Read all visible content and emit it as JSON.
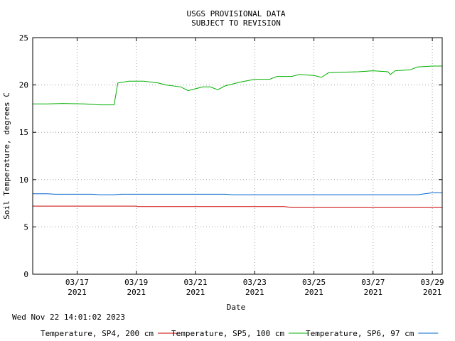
{
  "chart_data": {
    "type": "line",
    "title": [
      "USGS PROVISIONAL DATA",
      "SUBJECT TO REVISION"
    ],
    "xlabel": "Date",
    "ylabel": "Soil Temperature, degrees C",
    "ylim": [
      0,
      25
    ],
    "yticks": [
      0,
      5,
      10,
      15,
      20,
      25
    ],
    "xlim": [
      "2021-03-15T12:00",
      "2021-03-29T08:00"
    ],
    "xticks": [
      {
        "date": "2021-03-17",
        "label": [
          "03/17",
          "2021"
        ]
      },
      {
        "date": "2021-03-19",
        "label": [
          "03/19",
          "2021"
        ]
      },
      {
        "date": "2021-03-21",
        "label": [
          "03/21",
          "2021"
        ]
      },
      {
        "date": "2021-03-23",
        "label": [
          "03/23",
          "2021"
        ]
      },
      {
        "date": "2021-03-25",
        "label": [
          "03/25",
          "2021"
        ]
      },
      {
        "date": "2021-03-27",
        "label": [
          "03/27",
          "2021"
        ]
      },
      {
        "date": "2021-03-29",
        "label": [
          "03/29",
          "2021"
        ]
      }
    ],
    "grid": true,
    "legend_position": "bottom",
    "timestamp": "Wed Nov 22 14:01:02 2023",
    "series": [
      {
        "name": "Temperature, SP4, 200 cm",
        "color": "#cc0000",
        "points": [
          [
            "2021-03-15T12:00",
            7.2
          ],
          [
            "2021-03-19T00:00",
            7.2
          ],
          [
            "2021-03-19T01:00",
            7.15
          ],
          [
            "2021-03-24T00:00",
            7.15
          ],
          [
            "2021-03-24T06:00",
            7.05
          ],
          [
            "2021-03-29T08:00",
            7.05
          ]
        ]
      },
      {
        "name": "Temperature, SP5, 100 cm",
        "color": "#00b000",
        "points": [
          [
            "2021-03-15T12:00",
            18.0
          ],
          [
            "2021-03-16T00:00",
            18.0
          ],
          [
            "2021-03-16T12:00",
            18.05
          ],
          [
            "2021-03-17T06:00",
            18.0
          ],
          [
            "2021-03-17T18:00",
            17.9
          ],
          [
            "2021-03-18T06:00",
            17.9
          ],
          [
            "2021-03-18T09:00",
            20.2
          ],
          [
            "2021-03-18T18:00",
            20.4
          ],
          [
            "2021-03-19T06:00",
            20.4
          ],
          [
            "2021-03-19T18:00",
            20.2
          ],
          [
            "2021-03-20T00:00",
            20.0
          ],
          [
            "2021-03-20T12:00",
            19.8
          ],
          [
            "2021-03-20T18:00",
            19.4
          ],
          [
            "2021-03-21T00:00",
            19.6
          ],
          [
            "2021-03-21T06:00",
            19.8
          ],
          [
            "2021-03-21T12:00",
            19.8
          ],
          [
            "2021-03-21T18:00",
            19.5
          ],
          [
            "2021-03-22T00:00",
            19.9
          ],
          [
            "2021-03-22T12:00",
            20.3
          ],
          [
            "2021-03-23T00:00",
            20.6
          ],
          [
            "2021-03-23T12:00",
            20.6
          ],
          [
            "2021-03-23T18:00",
            20.9
          ],
          [
            "2021-03-24T06:00",
            20.9
          ],
          [
            "2021-03-24T12:00",
            21.1
          ],
          [
            "2021-03-25T00:00",
            21.0
          ],
          [
            "2021-03-25T06:00",
            20.8
          ],
          [
            "2021-03-25T12:00",
            21.3
          ],
          [
            "2021-03-26T12:00",
            21.4
          ],
          [
            "2021-03-27T00:00",
            21.5
          ],
          [
            "2021-03-27T12:00",
            21.4
          ],
          [
            "2021-03-27T14:00",
            21.1
          ],
          [
            "2021-03-27T18:00",
            21.5
          ],
          [
            "2021-03-28T06:00",
            21.6
          ],
          [
            "2021-03-28T12:00",
            21.9
          ],
          [
            "2021-03-29T00:00",
            22.0
          ],
          [
            "2021-03-29T08:00",
            22.0
          ]
        ]
      },
      {
        "name": "Temperature, SP6, 97 cm",
        "color": "#0066cc",
        "points": [
          [
            "2021-03-15T12:00",
            8.5
          ],
          [
            "2021-03-16T00:00",
            8.5
          ],
          [
            "2021-03-16T06:00",
            8.45
          ],
          [
            "2021-03-17T12:00",
            8.45
          ],
          [
            "2021-03-17T18:00",
            8.4
          ],
          [
            "2021-03-18T06:00",
            8.4
          ],
          [
            "2021-03-18T12:00",
            8.45
          ],
          [
            "2021-03-22T00:00",
            8.45
          ],
          [
            "2021-03-22T06:00",
            8.4
          ],
          [
            "2021-03-28T12:00",
            8.4
          ],
          [
            "2021-03-29T00:00",
            8.6
          ],
          [
            "2021-03-29T08:00",
            8.6
          ]
        ]
      }
    ]
  }
}
